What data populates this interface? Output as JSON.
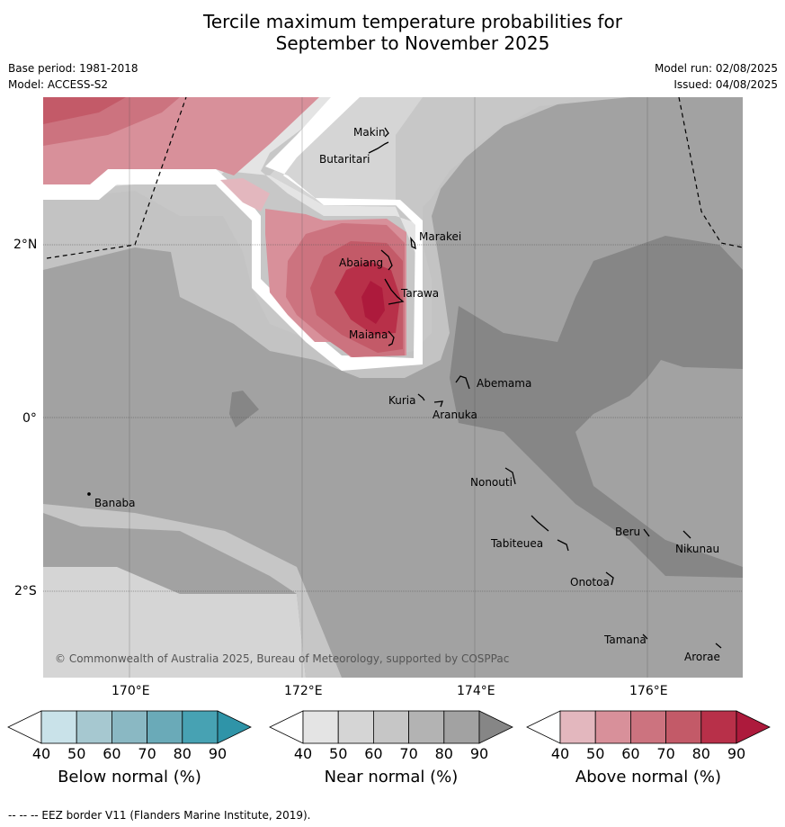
{
  "title_line1": "Tercile maximum temperature probabilities for",
  "title_line2": "September to November 2025",
  "base_period": "Base period: 1981-2018",
  "model": "Model: ACCESS-S2",
  "model_run": "Model run: 02/08/2025",
  "issued": "Issued: 04/08/2025",
  "map": {
    "lat_labels": [
      "2°N",
      "0°",
      "2°S"
    ],
    "lon_labels": [
      "170°E",
      "172°E",
      "174°E",
      "176°E"
    ],
    "copyright": "© Commonwealth of Australia 2025, Bureau of Meteorology, supported by COSPPac",
    "places": [
      "Makin",
      "Butaritari",
      "Marakei",
      "Abaiang",
      "Tarawa",
      "Maiana",
      "Abemama",
      "Kuria",
      "Aranuka",
      "Banaba",
      "Nonouti",
      "Tabiteuea",
      "Beru",
      "Nikunau",
      "Onotoa",
      "Tamana",
      "Arorae"
    ]
  },
  "colorbars": [
    {
      "title": "Below normal (%)",
      "ticks": [
        "40",
        "50",
        "60",
        "70",
        "80",
        "90"
      ],
      "colors": [
        "#ffffff",
        "#c9e2e9",
        "#a6c8d0",
        "#8ab8c3",
        "#6aaab8",
        "#47a2b3",
        "#2f94a8"
      ]
    },
    {
      "title": "Near normal (%)",
      "ticks": [
        "40",
        "50",
        "60",
        "70",
        "80",
        "90"
      ],
      "colors": [
        "#ffffff",
        "#e4e4e4",
        "#d5d5d5",
        "#c6c6c6",
        "#b3b3b3",
        "#a2a2a2",
        "#868686"
      ]
    },
    {
      "title": "Above normal (%)",
      "ticks": [
        "40",
        "50",
        "60",
        "70",
        "80",
        "90"
      ],
      "colors": [
        "#ffffff",
        "#e3b7be",
        "#d8909a",
        "#cc737f",
        "#c35a68",
        "#b83049",
        "#ad1a3c"
      ]
    }
  ],
  "footer": "-- -- -- EEZ border V11 (Flanders Marine Institute, 2019)."
}
